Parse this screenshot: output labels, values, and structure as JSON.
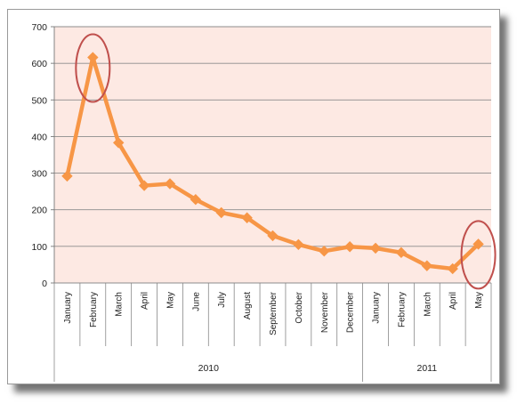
{
  "chart_data": {
    "type": "line",
    "title": "",
    "xlabel": "",
    "ylabel": "",
    "ylim": [
      0,
      700
    ],
    "yticks": [
      "0",
      "100",
      "200",
      "300",
      "400",
      "500",
      "600",
      "700"
    ],
    "categories": [
      "January",
      "February",
      "March",
      "April",
      "May",
      "June",
      "July",
      "August",
      "September",
      "October",
      "November",
      "December",
      "January",
      "February",
      "March",
      "April",
      "May"
    ],
    "groups": [
      {
        "label": "2010",
        "count": 12
      },
      {
        "label": "2011",
        "count": 5
      }
    ],
    "series": [
      {
        "values": [
          292,
          616,
          383,
          266,
          271,
          228,
          192,
          178,
          129,
          105,
          87,
          99,
          95,
          83,
          47,
          39,
          106
        ]
      }
    ],
    "highlighted_points": [
      "February 2010",
      "May 2011"
    ],
    "grid": "horizontal",
    "legend": "none",
    "colors": {
      "plot_background": "#fde9e3",
      "line": "#f79646",
      "highlight_ellipse": "#c0504d",
      "gridline": "#8c8c8c"
    }
  }
}
